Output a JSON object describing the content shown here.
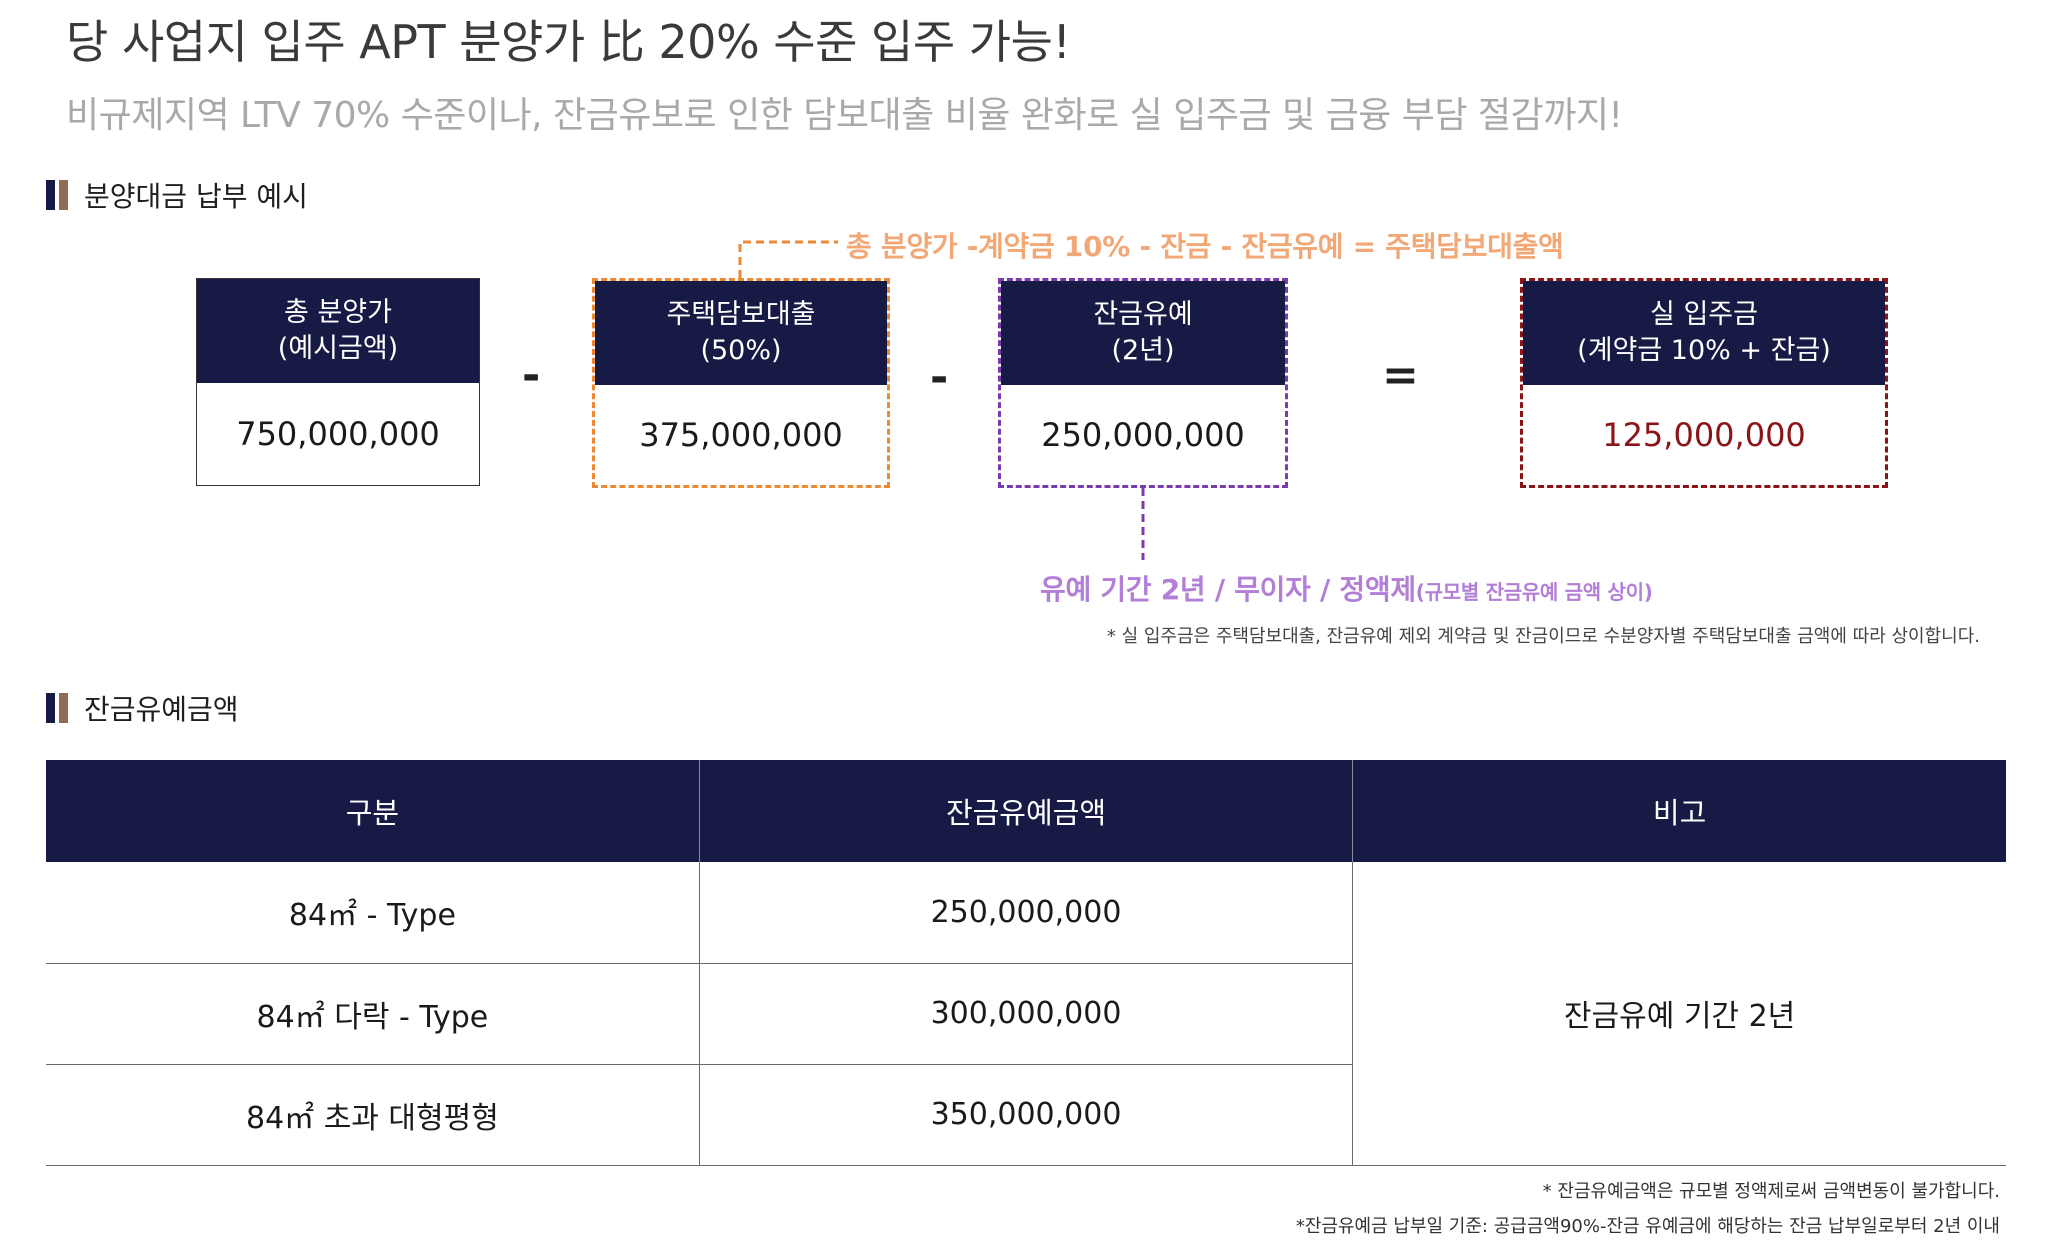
{
  "header": {
    "headline": "당 사업지 입주 APT 분양가 比 20% 수준 입주 가능!",
    "subline": "비규제지역 LTV 70% 수준이나, 잔금유보로 인한 담보대출 비율 완화로 실 입주금 및 금융 부담 절감까지!"
  },
  "section1": {
    "title": "분양대금 납부 예시",
    "formula_note": "총 분양가 -계약금 10% - 잔금  - 잔금유예 = 주택담보대출액",
    "boxes": [
      {
        "head_line1": "총 분양가",
        "head_line2": "(예시금액)",
        "value": "750,000,000"
      },
      {
        "head_line1": "주택담보대출",
        "head_line2": "(50%)",
        "value": "375,000,000"
      },
      {
        "head_line1": "잔금유예",
        "head_line2": "(2년)",
        "value": "250,000,000"
      },
      {
        "head_line1": "실 입주금",
        "head_line2": "(계약금 10% + 잔금)",
        "value": "125,000,000"
      }
    ],
    "operators": [
      "-",
      "-",
      "="
    ],
    "deferral_note_main": "유예 기간 2년 / 무이자 / 정액제",
    "deferral_note_small": "(규모별 잔금유예 금액 상이)",
    "footnote": "* 실 입주금은 주택담보대출, 잔금유예 제외 계약금 및 잔금이므로 수분양자별 주택담보대출 금액에 따라 상이합니다."
  },
  "section2": {
    "title": "잔금유예금액",
    "columns": [
      "구분",
      "잔금유예금액",
      "비고"
    ],
    "rows": [
      {
        "type": "84㎡ - Type",
        "amount": "250,000,000"
      },
      {
        "type": "84㎡ 다락 - Type",
        "amount": "300,000,000"
      },
      {
        "type": "84㎡ 초과 대형평형",
        "amount": "350,000,000"
      }
    ],
    "remark": "잔금유예 기간 2년",
    "footnote1": "* 잔금유예금액은 규모별 정액제로써 금액변동이 불가합니다.",
    "footnote2": "*잔금유예금 납부일 기준: 공급금액90%-잔금 유예금에 해당하는 잔금 납부일로부터 2년 이내"
  },
  "colors": {
    "navy": "#171a44",
    "orange": "#ec8a34",
    "purple": "#7b3cab",
    "dark_red": "#8a1418",
    "brown": "#8f6d55"
  }
}
